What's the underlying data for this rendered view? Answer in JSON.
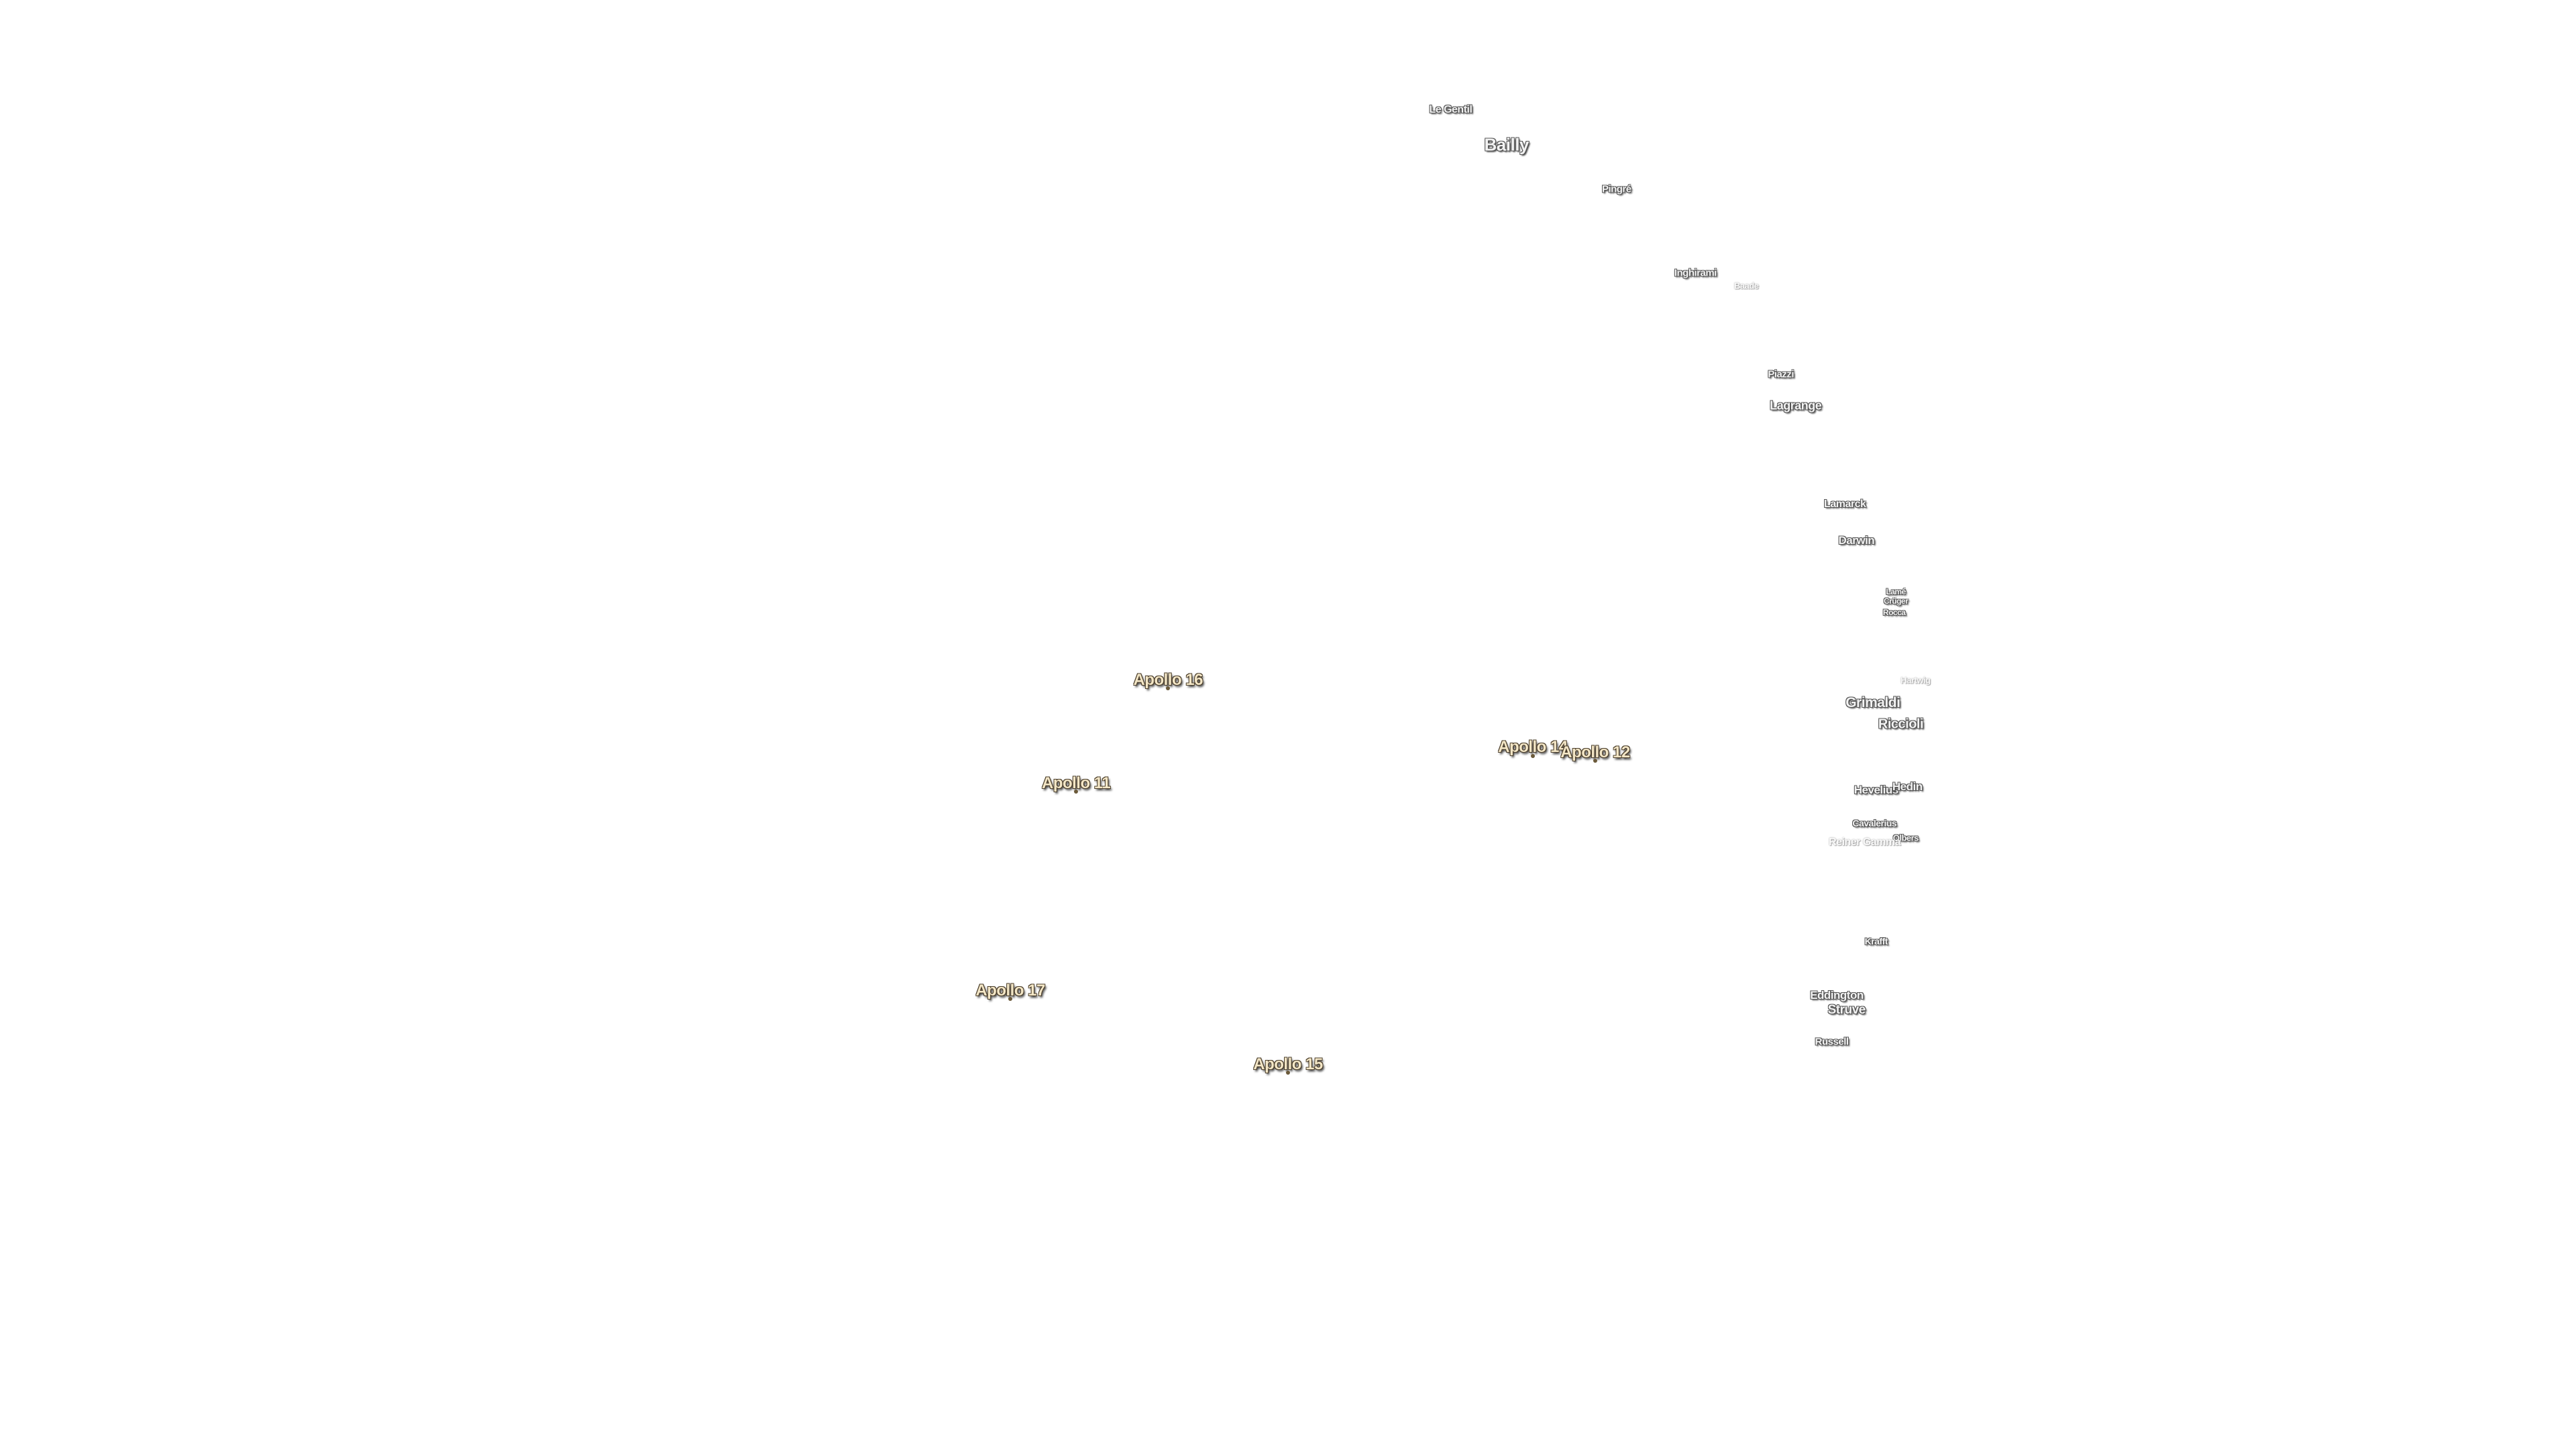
{
  "labels": {
    "apollo": [
      "Apollo 16",
      "Apollo 14",
      "Apollo 12",
      "Apollo 11",
      "Apollo 17",
      "Apollo 15"
    ],
    "features": [
      "Le Gentil",
      "Bailly",
      "Pingré",
      "Inghirami",
      "Baade",
      "Piazzi",
      "Lagrange",
      "Lamarck",
      "Darwin",
      "Lamé",
      "Crüger",
      "Rocca",
      "Hartwig",
      "Grimaldi",
      "Riccioli",
      "Hevelius",
      "Hedin",
      "Cavalerius",
      "Olbers",
      "Reiner Gamma",
      "Krafft",
      "Eddington",
      "Struve",
      "Russell"
    ]
  }
}
